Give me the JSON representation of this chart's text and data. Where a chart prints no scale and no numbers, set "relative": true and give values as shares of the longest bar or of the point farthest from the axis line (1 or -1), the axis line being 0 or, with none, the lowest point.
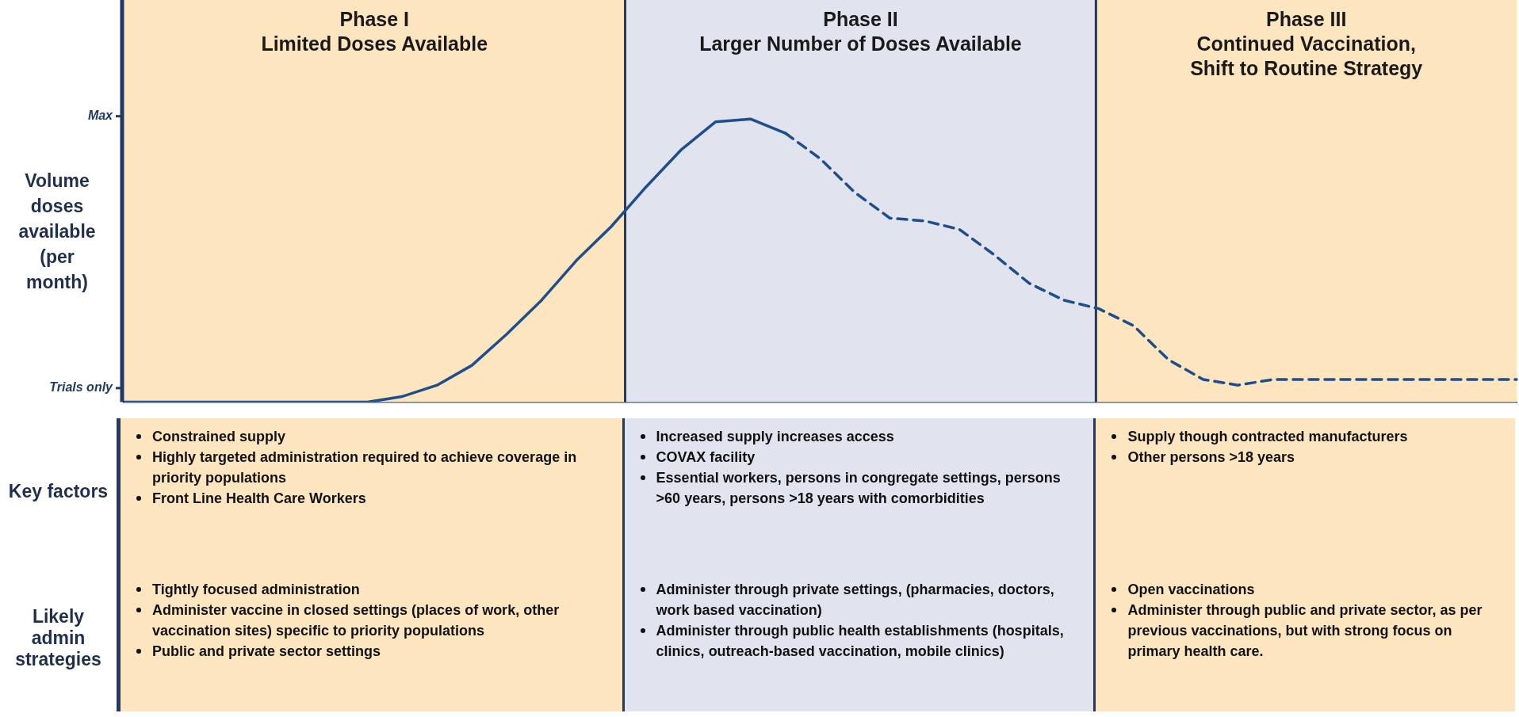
{
  "chart_data": {
    "type": "line",
    "categories": [
      null,
      null,
      null,
      null,
      null,
      null,
      null,
      null,
      null,
      null,
      null,
      null,
      null,
      null,
      null,
      null,
      null,
      null,
      null,
      null,
      null,
      null,
      null,
      null,
      null,
      null,
      null,
      null,
      null,
      null,
      null,
      null,
      null,
      null,
      null,
      null,
      null,
      null,
      null,
      null,
      null
    ],
    "series": [
      {
        "color": "#1f4e8c",
        "line_style": "solid",
        "values": [
          0,
          0,
          0,
          0,
          0,
          0,
          0,
          0,
          0.02,
          0.06,
          0.13,
          0.24,
          0.36,
          0.5,
          0.62,
          0.76,
          0.89,
          0.99,
          1.0,
          0.95,
          null,
          null,
          null,
          null,
          null,
          null,
          null,
          null,
          null,
          null,
          null,
          null,
          null,
          null,
          null,
          null,
          null,
          null,
          null,
          null,
          null
        ]
      },
      {
        "color": "#1f4e8c",
        "line_style": "dashed",
        "values": [
          null,
          null,
          null,
          null,
          null,
          null,
          null,
          null,
          null,
          null,
          null,
          null,
          null,
          null,
          null,
          null,
          null,
          null,
          null,
          0.95,
          0.86,
          0.74,
          0.65,
          0.64,
          0.61,
          0.52,
          0.42,
          0.36,
          0.33,
          0.27,
          0.15,
          0.08,
          0.06,
          0.08,
          0.08,
          0.08,
          0.08,
          0.08,
          0.08,
          0.08,
          0.08
        ]
      }
    ],
    "relative": true,
    "legend": false,
    "marker": "none",
    "annotations": [
      "Volume doses available (per month)",
      "Max",
      "Trials only",
      "Phase I Limited Doses Available",
      "Phase II Larger Number of Doses Available",
      "Phase III Continued Vaccination, Shift to Routine Strategy",
      "Key factors",
      "Constrained supply",
      "Highly targeted administration required to achieve coverage in priority populations",
      "Front Line Health Care Workers",
      "Increased supply increases access",
      "COVAX facility",
      "Essential workers, persons in congregate settings, persons >60 years, persons >18 years with comorbidities",
      "Supply though contracted manufacturers",
      "Other persons >18 years",
      "Likely admin strategies",
      "Tightly focused administration",
      "Administer vaccine in closed settings (places of work, other vaccination sites) specific to priority populations",
      "Public and private sector settings",
      "Administer through private settings, (pharmacies, doctors, work based vaccination)",
      "Administer through public health establishments (hospitals, clinics, outreach-based vaccination, mobile clinics)",
      "Open vaccinations",
      "Administer through public and private sector, as per previous vaccinations, but with strong focus on primary health care."
    ]
  }
}
